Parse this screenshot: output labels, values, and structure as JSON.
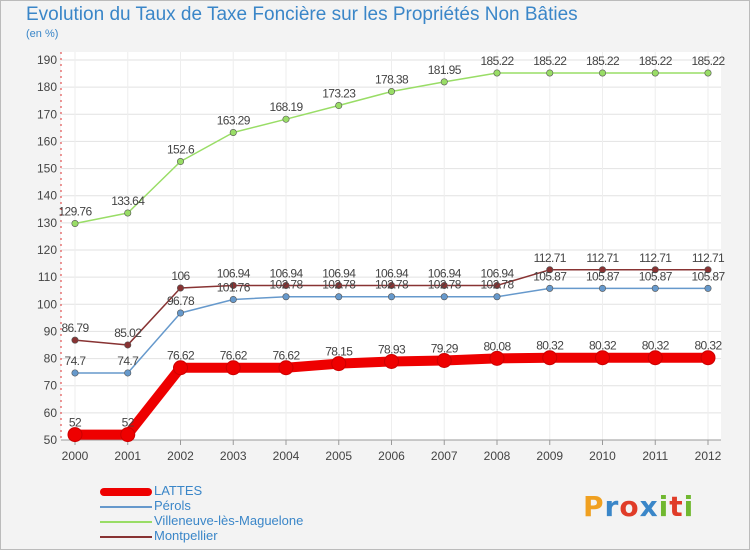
{
  "title": "Evolution du Taux de Taxe Foncière sur les Propriétés Non Bâties",
  "unit": "(en %)",
  "brand": {
    "text": "Proxiti",
    "colors": [
      "#f0a020",
      "#3a86c8",
      "#e03c28",
      "#3a86c8",
      "#70b830",
      "#e03c28",
      "#70b830"
    ]
  },
  "chart_data": {
    "type": "line",
    "title": "Evolution du Taux de Taxe Foncière sur les Propriétés Non Bâties",
    "ylabel": "(en %)",
    "xlabel": "",
    "ylim": [
      50,
      190
    ],
    "yticks": [
      50,
      60,
      70,
      80,
      90,
      100,
      110,
      120,
      130,
      140,
      150,
      160,
      170,
      180,
      190
    ],
    "categories": [
      "2000",
      "2001",
      "2002",
      "2003",
      "2004",
      "2005",
      "2006",
      "2007",
      "2008",
      "2009",
      "2010",
      "2011",
      "2012"
    ],
    "legend_position": "bottom-left",
    "series": [
      {
        "name": "LATTES",
        "color": "#ee0000",
        "thick": true,
        "values": [
          52,
          52,
          76.62,
          76.62,
          76.62,
          78.15,
          78.93,
          79.29,
          80.08,
          80.32,
          80.32,
          80.32,
          80.32
        ],
        "labels": [
          "52",
          "52",
          "76.62",
          "76.62",
          "76.62",
          "78.15",
          "78.93",
          "79.29",
          "80.08",
          "80.32",
          "80.32",
          "80.32",
          "80.32"
        ]
      },
      {
        "name": "Pérols",
        "color": "#6699cc",
        "thick": false,
        "values": [
          74.7,
          74.7,
          96.78,
          101.76,
          102.78,
          102.78,
          102.78,
          102.78,
          102.78,
          105.87,
          105.87,
          105.87,
          105.87
        ],
        "labels": [
          "74.7",
          "74.7",
          "96.78",
          "101.76",
          "102.78",
          "102.78",
          "102.78",
          "102.78",
          "102.78",
          "105.87",
          "105.87",
          "105.87",
          "105.87"
        ]
      },
      {
        "name": "Villeneuve-lès-Maguelone",
        "color": "#99dd66",
        "thick": false,
        "values": [
          129.76,
          133.64,
          152.6,
          163.29,
          168.19,
          173.23,
          178.38,
          181.95,
          185.22,
          185.22,
          185.22,
          185.22,
          185.22
        ],
        "labels": [
          "129.76",
          "133.64",
          "152.6",
          "163.29",
          "168.19",
          "173.23",
          "178.38",
          "181.95",
          "185.22",
          "185.22",
          "185.22",
          "185.22",
          "185.22"
        ]
      },
      {
        "name": "Montpellier",
        "color": "#883333",
        "thick": false,
        "values": [
          86.79,
          85.02,
          106,
          106.94,
          106.94,
          106.94,
          106.94,
          106.94,
          106.94,
          112.71,
          112.71,
          112.71,
          112.71
        ],
        "labels": [
          "86.79",
          "85.02",
          "106",
          "106.94",
          "106.94",
          "106.94",
          "106.94",
          "106.94",
          "106.94",
          "112.71",
          "112.71",
          "112.71",
          "112.71"
        ]
      }
    ]
  }
}
